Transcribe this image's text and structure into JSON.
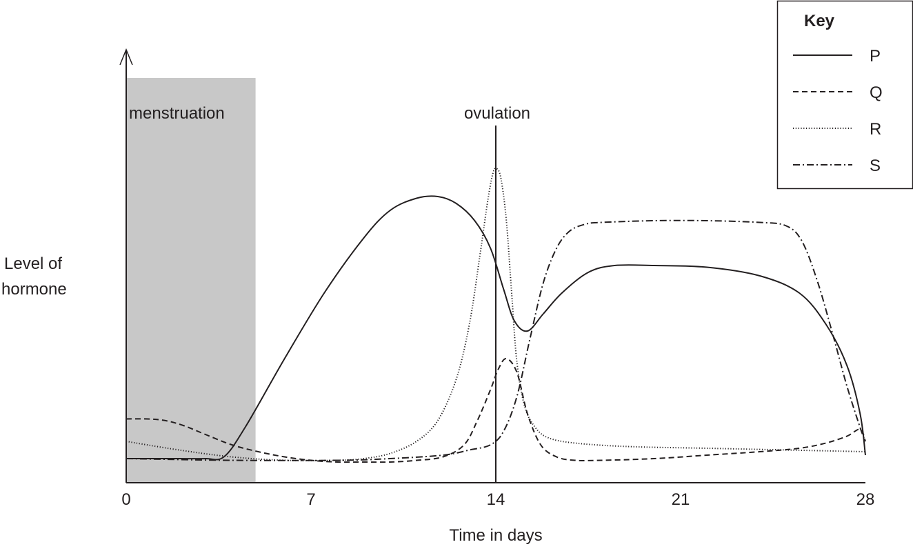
{
  "chart_data": {
    "type": "line",
    "title": "",
    "xlabel": "Time in days",
    "ylabel": [
      "Level of",
      "hormone"
    ],
    "xlim": [
      0,
      28
    ],
    "ylim": [
      0,
      100
    ],
    "x_ticks": [
      "0",
      "7",
      "14",
      "21",
      "28"
    ],
    "grid": false,
    "legend_title": "Key",
    "legend_position": "top-right",
    "shaded_region": {
      "label": "menstruation",
      "x_start": 0,
      "x_end": 4.9,
      "color": "#c8c8c8"
    },
    "vertical_marker": {
      "label": "ovulation",
      "x": 14
    },
    "series": [
      {
        "name": "P",
        "dash": "solid",
        "x": [
          0,
          1,
          2,
          3,
          3.7,
          4.5,
          6,
          7.5,
          9,
          10,
          11,
          11.8,
          12.5,
          13.2,
          13.8,
          14.3,
          14.7,
          15.2,
          15.8,
          16.5,
          17.5,
          18.5,
          20,
          22,
          24,
          25.5,
          26.5,
          27.3,
          27.8,
          28
        ],
        "y": [
          7,
          7,
          7,
          7,
          7.5,
          16,
          36,
          55,
          71,
          79,
          82.5,
          83,
          81,
          76,
          68,
          56,
          47,
          44,
          49,
          55,
          61,
          63,
          63,
          62.5,
          60,
          55,
          46,
          34,
          20,
          8
        ]
      },
      {
        "name": "Q",
        "dash": "dashed",
        "x": [
          0,
          0.8,
          1.5,
          2.2,
          3,
          4,
          5,
          6,
          7,
          8,
          9,
          10,
          11,
          12,
          12.8,
          13.3,
          13.8,
          14.1,
          14.4,
          14.8,
          15.2,
          15.7,
          16.3,
          17,
          18,
          20,
          22,
          24,
          25.5,
          26.5,
          27.3,
          27.8,
          28
        ],
        "y": [
          18.5,
          18.5,
          18,
          16.5,
          14,
          11,
          9,
          7.5,
          6.5,
          6,
          6,
          6,
          6.5,
          7.5,
          11,
          18,
          27,
          33,
          36,
          32,
          20,
          11,
          7.5,
          6.5,
          6.5,
          7,
          8,
          9,
          10,
          11.5,
          13.5,
          15.5,
          12
        ]
      },
      {
        "name": "R",
        "dash": "dotted",
        "x": [
          0,
          2,
          4,
          6,
          8,
          9,
          10,
          11,
          11.8,
          12.5,
          13,
          13.4,
          13.7,
          13.9,
          14.05,
          14.2,
          14.4,
          14.6,
          14.8,
          15.1,
          15.5,
          16,
          17,
          19,
          22,
          25,
          28
        ],
        "y": [
          12,
          9.5,
          7.5,
          6.5,
          6.5,
          7,
          8.5,
          12,
          18,
          30,
          46,
          66,
          82,
          90,
          91,
          88,
          76,
          55,
          35,
          22,
          16,
          13,
          11.5,
          10.5,
          10,
          9.5,
          9
        ]
      },
      {
        "name": "S",
        "dash": "dash-dot",
        "x": [
          0,
          4,
          8,
          10,
          12,
          13,
          13.8,
          14.3,
          14.8,
          15.3,
          15.8,
          16.3,
          16.8,
          17.4,
          18,
          20,
          22,
          24,
          25,
          25.6,
          26.2,
          26.8,
          27.3,
          27.8,
          28
        ],
        "y": [
          7,
          6.5,
          6.5,
          7,
          8,
          9.5,
          11,
          15,
          25,
          42,
          58,
          68,
          73,
          75,
          75.5,
          76,
          76,
          75.5,
          74.5,
          70,
          58,
          42,
          28,
          16,
          12
        ]
      }
    ]
  }
}
